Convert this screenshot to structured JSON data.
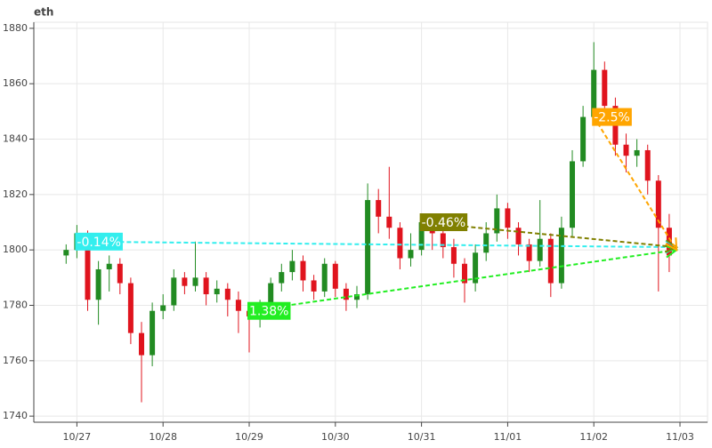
{
  "chart_data": {
    "type": "candlestick",
    "title": "eth",
    "x": [
      -0.125,
      0,
      0.125,
      0.25,
      0.375,
      0.5,
      0.625,
      0.75,
      0.875,
      1,
      1.125,
      1.25,
      1.375,
      1.5,
      1.625,
      1.75,
      1.875,
      2,
      2.125,
      2.25,
      2.375,
      2.5,
      2.625,
      2.75,
      2.875,
      3,
      3.125,
      3.25,
      3.375,
      3.5,
      3.625,
      3.75,
      3.875,
      4,
      4.125,
      4.25,
      4.375,
      4.5,
      4.625,
      4.75,
      4.875,
      5,
      5.125,
      5.25,
      5.375,
      5.5,
      5.625,
      5.75,
      5.875,
      6,
      6.125,
      6.25,
      6.375,
      6.5,
      6.625,
      6.75,
      6.875
    ],
    "open": [
      1798,
      1800,
      1806,
      1782,
      1793,
      1795,
      1788,
      1770,
      1762,
      1778,
      1780,
      1790,
      1787,
      1790,
      1784,
      1786,
      1782,
      1778,
      1776,
      1780,
      1788,
      1792,
      1796,
      1789,
      1785,
      1795,
      1786,
      1782,
      1784,
      1818,
      1812,
      1808,
      1797,
      1800,
      1810,
      1806,
      1801,
      1795,
      1788,
      1799,
      1806,
      1815,
      1808,
      1802,
      1796,
      1804,
      1788,
      1808,
      1832,
      1848,
      1865,
      1852,
      1838,
      1834,
      1836,
      1825,
      1808
    ],
    "high": [
      1802,
      1809,
      1807,
      1796,
      1798,
      1797,
      1790,
      1774,
      1781,
      1784,
      1793,
      1792,
      1803,
      1792,
      1789,
      1788,
      1785,
      1780,
      1782,
      1790,
      1795,
      1800,
      1798,
      1791,
      1797,
      1796,
      1788,
      1787,
      1824,
      1822,
      1830,
      1810,
      1806,
      1813,
      1812,
      1808,
      1804,
      1797,
      1802,
      1810,
      1820,
      1817,
      1810,
      1804,
      1818,
      1806,
      1812,
      1836,
      1852,
      1875,
      1868,
      1855,
      1842,
      1840,
      1838,
      1827,
      1813
    ],
    "low": [
      1795,
      1797,
      1778,
      1773,
      1785,
      1784,
      1766,
      1745,
      1758,
      1775,
      1778,
      1784,
      1785,
      1780,
      1781,
      1776,
      1770,
      1763,
      1772,
      1778,
      1785,
      1789,
      1785,
      1782,
      1783,
      1783,
      1778,
      1779,
      1782,
      1806,
      1804,
      1793,
      1794,
      1798,
      1800,
      1797,
      1790,
      1781,
      1785,
      1796,
      1803,
      1804,
      1798,
      1792,
      1794,
      1783,
      1786,
      1805,
      1830,
      1845,
      1848,
      1834,
      1828,
      1830,
      1820,
      1785,
      1792
    ],
    "close": [
      1800,
      1806,
      1782,
      1793,
      1795,
      1788,
      1770,
      1762,
      1778,
      1780,
      1790,
      1787,
      1790,
      1784,
      1786,
      1782,
      1778,
      1776,
      1780,
      1788,
      1792,
      1796,
      1789,
      1785,
      1795,
      1786,
      1782,
      1784,
      1818,
      1812,
      1808,
      1797,
      1800,
      1810,
      1806,
      1801,
      1795,
      1788,
      1799,
      1806,
      1815,
      1808,
      1802,
      1796,
      1804,
      1788,
      1808,
      1832,
      1848,
      1865,
      1852,
      1838,
      1834,
      1836,
      1825,
      1808,
      1798
    ],
    "up_color": "#228b22",
    "down_color": "#e0141e",
    "xlim": [
      -0.5,
      7.32
    ],
    "ylim": [
      1737.8,
      1882.2
    ],
    "xticks": [
      {
        "value": 0,
        "label": "10/27"
      },
      {
        "value": 1,
        "label": "10/28"
      },
      {
        "value": 2,
        "label": "10/29"
      },
      {
        "value": 3,
        "label": "10/30"
      },
      {
        "value": 4,
        "label": "10/31"
      },
      {
        "value": 5,
        "label": "11/01"
      },
      {
        "value": 6,
        "label": "11/02"
      },
      {
        "value": 7,
        "label": "11/03"
      }
    ],
    "yticks": [
      1740,
      1760,
      1780,
      1800,
      1820,
      1840,
      1860,
      1880
    ],
    "grid": true,
    "annotations": [
      {
        "label": "-0.14%",
        "color": "#33eeee",
        "x": [
          0,
          6.96
        ],
        "y": [
          1803,
          1801
        ]
      },
      {
        "label": "1.38%",
        "color": "#22ee22",
        "x": [
          2,
          6.96
        ],
        "y": [
          1778,
          1800
        ]
      },
      {
        "label": "-0.46%",
        "color": "#808000",
        "x": [
          4,
          6.96
        ],
        "y": [
          1810,
          1801
        ]
      },
      {
        "label": "-2.5%",
        "color": "#ffa500",
        "x": [
          6,
          6.96
        ],
        "y": [
          1848,
          1800
        ]
      }
    ]
  }
}
